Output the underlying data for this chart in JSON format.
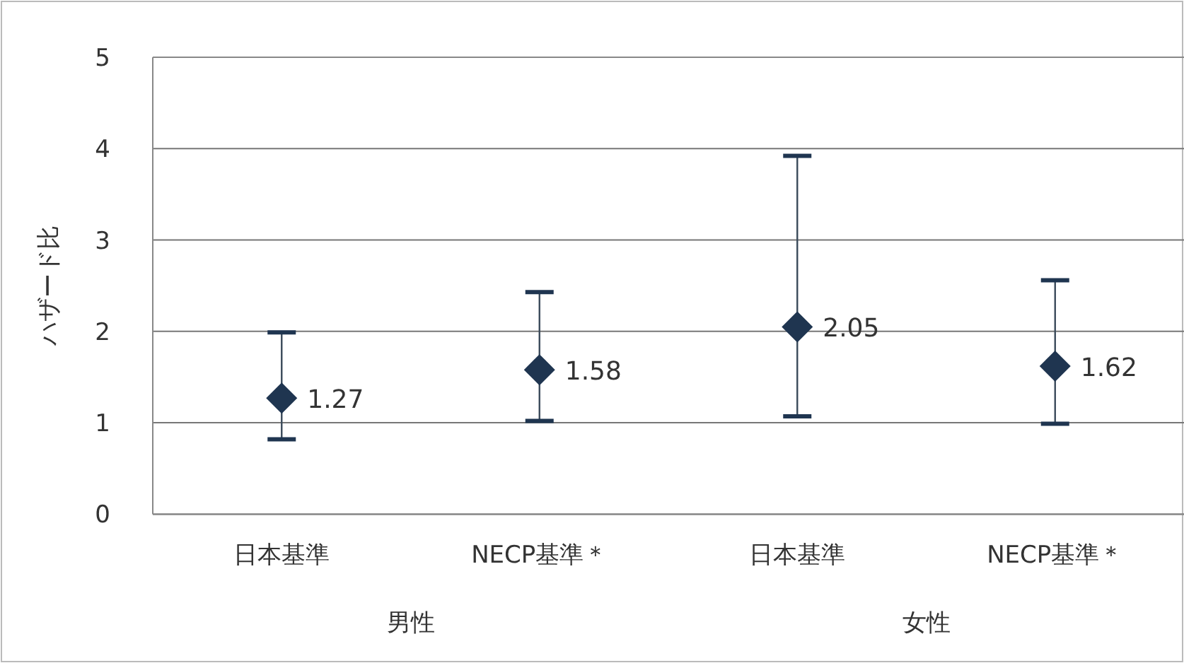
{
  "chart_data": {
    "type": "scatter",
    "ylabel": "ハザード比",
    "categories": [
      "日本基準",
      "NECP基準＊",
      "日本基準",
      "NECP基準＊"
    ],
    "values": [
      1.27,
      1.58,
      2.05,
      1.62
    ],
    "errors": [
      [
        0.82,
        1.99
      ],
      [
        1.02,
        2.43
      ],
      [
        1.07,
        3.92
      ],
      [
        0.99,
        2.56
      ]
    ],
    "color": "#1f3550",
    "marker": "diamond",
    "data_labels": true,
    "grid": "y",
    "ylim": [
      0,
      5
    ],
    "yticks": [
      0,
      1,
      2,
      3,
      4,
      5
    ],
    "annotations": [
      "男性",
      "女性"
    ]
  }
}
